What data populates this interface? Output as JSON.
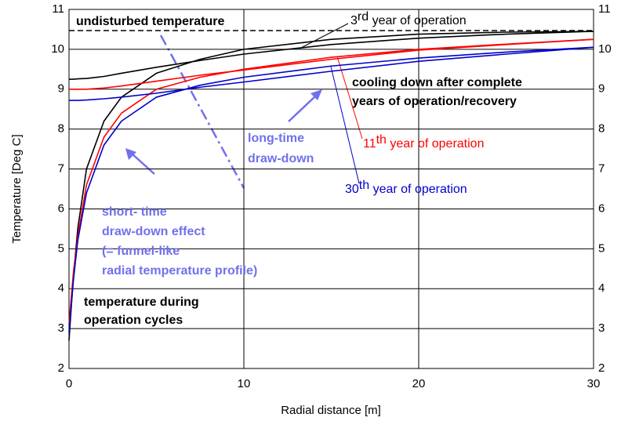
{
  "chart_data": {
    "type": "line",
    "xlabel": "Radial distance [m]",
    "ylabel": "Temperature [Deg C]",
    "xlim": [
      0,
      30
    ],
    "xticks": [
      0,
      10,
      20,
      30
    ],
    "ylim": [
      2,
      11
    ],
    "yticks": [
      2,
      3,
      4,
      5,
      6,
      7,
      8,
      9,
      10,
      11
    ],
    "grid": true,
    "x": [
      0,
      0.25,
      0.5,
      1,
      2,
      3,
      5,
      7.5,
      10,
      15,
      20,
      25,
      30
    ],
    "series": [
      {
        "color": "#000000",
        "values": [
          2.7,
          4.3,
          5.5,
          7.0,
          8.2,
          8.8,
          9.4,
          9.75,
          10.0,
          10.25,
          10.38,
          10.43,
          10.45
        ]
      },
      {
        "color": "#000000",
        "values": [
          9.25,
          9.25,
          9.26,
          9.27,
          9.32,
          9.4,
          9.55,
          9.72,
          9.88,
          10.12,
          10.28,
          10.38,
          10.45
        ]
      },
      {
        "color": "#ff0000",
        "values": [
          3.1,
          4.4,
          5.3,
          6.6,
          7.8,
          8.4,
          9.0,
          9.3,
          9.5,
          9.8,
          10.0,
          10.13,
          10.25
        ]
      },
      {
        "color": "#ff0000",
        "values": [
          9.0,
          9.0,
          9.0,
          9.0,
          9.03,
          9.08,
          9.2,
          9.35,
          9.48,
          9.75,
          9.98,
          10.12,
          10.25
        ]
      },
      {
        "color": "#0000cc",
        "values": [
          2.9,
          4.2,
          5.2,
          6.4,
          7.6,
          8.2,
          8.8,
          9.1,
          9.3,
          9.58,
          9.78,
          9.93,
          10.05
        ]
      },
      {
        "color": "#0000cc",
        "values": [
          8.72,
          8.72,
          8.72,
          8.73,
          8.76,
          8.8,
          8.9,
          9.05,
          9.18,
          9.45,
          9.7,
          9.88,
          10.05
        ]
      }
    ],
    "reference_line": {
      "value": 10.47,
      "color": "#000000"
    },
    "annotations": [
      {
        "color": "#000000",
        "bold": true,
        "lines": [
          [
            {
              "text": "undisturbed temperature"
            }
          ]
        ]
      },
      {
        "color": "#000000",
        "bold": false,
        "lines": [
          [
            {
              "text": "3"
            },
            {
              "text": "rd",
              "sup": true
            },
            {
              "text": " year of operation"
            }
          ]
        ]
      },
      {
        "color": "#000000",
        "bold": true,
        "lines": [
          [
            {
              "text": "cooling down after complete"
            }
          ],
          [
            {
              "text": "years of operation/recovery"
            }
          ]
        ]
      },
      {
        "color": "#ff0000",
        "bold": false,
        "lines": [
          [
            {
              "text": "11"
            },
            {
              "text": "th",
              "sup": true
            },
            {
              "text": " year of operation"
            }
          ]
        ]
      },
      {
        "color": "#7070ee",
        "bold": true,
        "lines": [
          [
            {
              "text": "long-time"
            }
          ],
          [
            {
              "text": "draw-down"
            }
          ]
        ]
      },
      {
        "color": "#0000cc",
        "bold": false,
        "lines": [
          [
            {
              "text": "30"
            },
            {
              "text": "th",
              "sup": true
            },
            {
              "text": " year of operation"
            }
          ]
        ]
      },
      {
        "color": "#7070ee",
        "bold": true,
        "lines": [
          [
            {
              "text": "short- time"
            }
          ],
          [
            {
              "text": "draw-down effect"
            }
          ],
          [
            {
              "text": "(= funnel-like"
            }
          ],
          [
            {
              "text": "radial temperature profile)"
            }
          ]
        ]
      },
      {
        "color": "#000000",
        "bold": true,
        "lines": [
          [
            {
              "text": "temperature during"
            }
          ],
          [
            {
              "text": "operation cycles"
            }
          ]
        ]
      }
    ]
  }
}
